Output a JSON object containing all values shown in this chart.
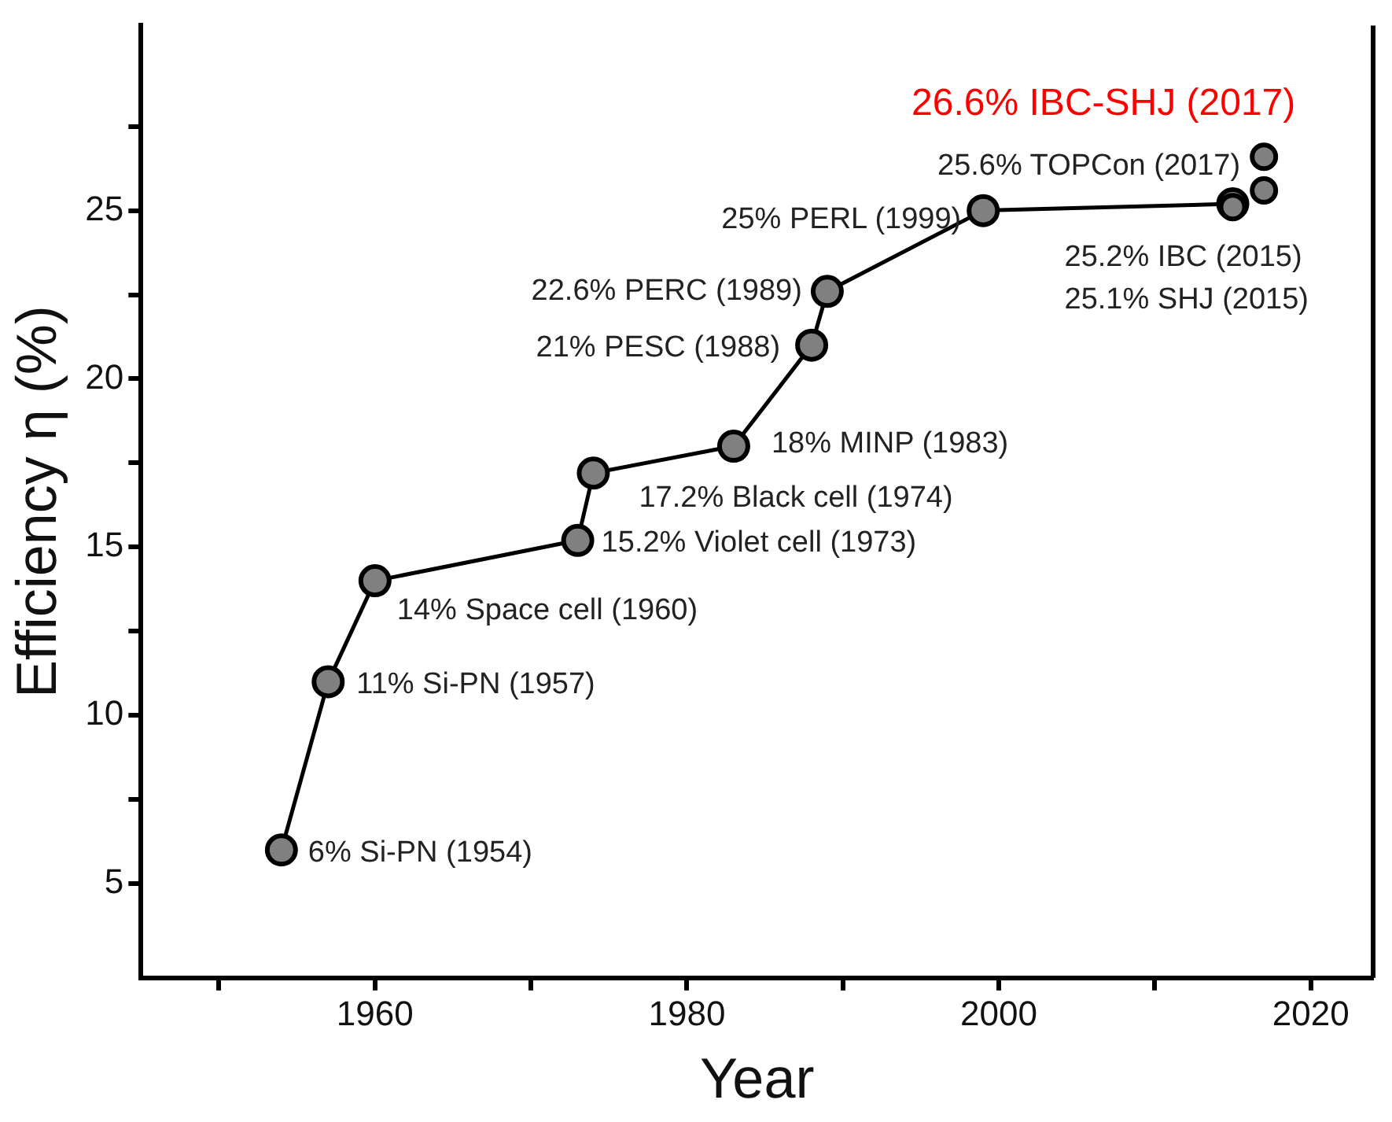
{
  "chart_data": {
    "type": "line",
    "xlabel": "Year",
    "ylabel": "Efficiency η (%)",
    "xlim": [
      1945,
      2024
    ],
    "xticks": [
      {
        "value": 1950,
        "label": null
      },
      1960,
      {
        "value": 1970,
        "label": null
      },
      1980,
      {
        "value": 1990,
        "label": null
      },
      2000,
      {
        "value": 2010,
        "label": null
      },
      2020
    ],
    "ylim": [
      2.2,
      30.5
    ],
    "yticks": [
      5,
      {
        "value": 7.5,
        "label": null
      },
      10,
      {
        "value": 12.5,
        "label": null
      },
      15,
      {
        "value": 17.5,
        "label": null
      },
      20,
      {
        "value": 22.5,
        "label": null
      },
      25,
      {
        "value": 27.5,
        "label": null
      }
    ],
    "grid": false,
    "legend": false,
    "marker": "circle",
    "line_style": "solid",
    "series": [
      {
        "type": "line",
        "color": "#808080",
        "x": [
          1954,
          1957,
          1960,
          1973,
          1974,
          1983,
          1988,
          1989,
          1999,
          2015
        ],
        "values": [
          6,
          11,
          14,
          15.2,
          17.2,
          18,
          21,
          22.6,
          25,
          25.2
        ]
      },
      {
        "type": "scatter",
        "color": "#808080",
        "x": [
          2015,
          2017,
          2017
        ],
        "values": [
          25.1,
          25.6,
          26.6
        ]
      }
    ],
    "annotations": [
      {
        "text": "6% Si-PN (1954)",
        "x": 1954,
        "y": 6
      },
      {
        "text": "11% Si-PN (1957)",
        "x": 1957,
        "y": 11
      },
      {
        "text": "14% Space cell (1960)",
        "x": 1960,
        "y": 14
      },
      {
        "text": "15.2% Violet cell (1973)",
        "x": 1973,
        "y": 15.2
      },
      {
        "text": "17.2% Black cell (1974)",
        "x": 1974,
        "y": 17.2
      },
      {
        "text": "18% MINP (1983)",
        "x": 1983,
        "y": 18
      },
      {
        "text": "21% PESC (1988)",
        "x": 1988,
        "y": 21
      },
      {
        "text": "22.6% PERC (1989)",
        "x": 1989,
        "y": 22.6
      },
      {
        "text": "25% PERL (1999)",
        "x": 1999,
        "y": 25
      },
      {
        "text": "25.2% IBC (2015)",
        "x": 2015,
        "y": 25.2
      },
      {
        "text": "25.1% SHJ (2015)",
        "x": 2015,
        "y": 25.1
      },
      {
        "text": "25.6% TOPCon (2017)",
        "x": 2017,
        "y": 25.6
      },
      {
        "text": "26.6% IBC-SHJ (2017)",
        "x": 2017,
        "y": 26.6
      }
    ]
  }
}
